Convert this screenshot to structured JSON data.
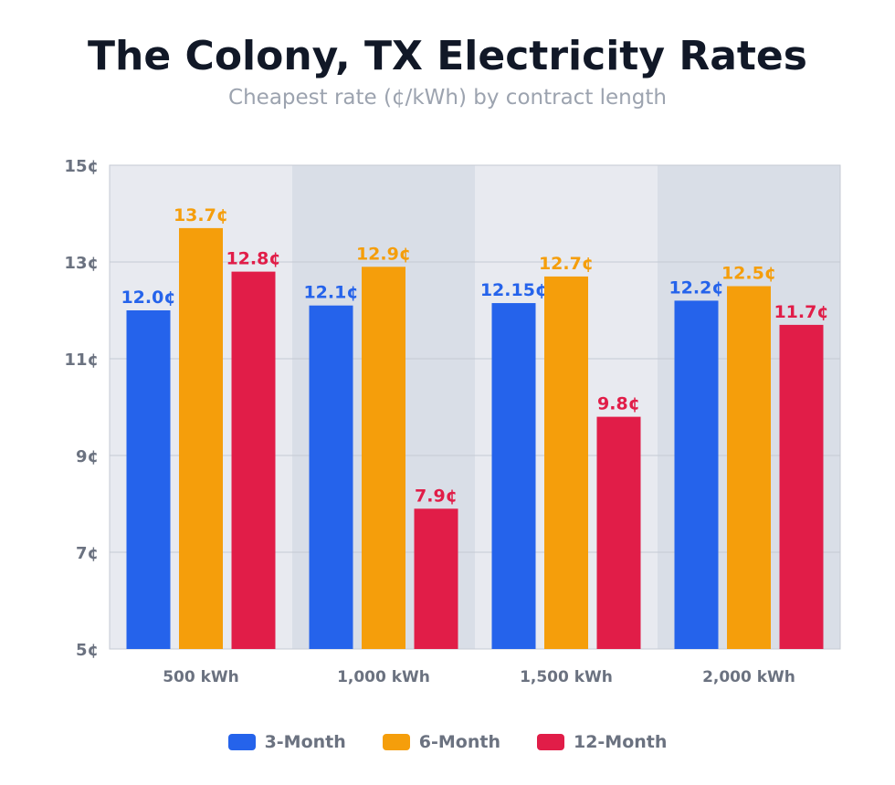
{
  "title": "The Colony, TX Electricity Rates",
  "subtitle": "Cheapest rate (¢/kWh) by contract length",
  "colors": {
    "3-Month": "#2563eb",
    "6-Month": "#f59e0b",
    "12-Month": "#e11d48",
    "band_light": "#e8eaf0",
    "band_dark": "#d9dee7",
    "axis_text": "#6b7280"
  },
  "chart_data": {
    "type": "bar",
    "title": "The Colony, TX Electricity Rates",
    "subtitle": "Cheapest rate (¢/kWh) by contract length",
    "categories": [
      "500 kWh",
      "1,000 kWh",
      "1,500 kWh",
      "2,000 kWh"
    ],
    "series": [
      {
        "name": "3-Month",
        "values": [
          12.0,
          12.1,
          12.15,
          12.2
        ],
        "labels": [
          "12.0¢",
          "12.1¢",
          "12.15¢",
          "12.2¢"
        ]
      },
      {
        "name": "6-Month",
        "values": [
          13.7,
          12.9,
          12.7,
          12.5
        ],
        "labels": [
          "13.7¢",
          "12.9¢",
          "12.7¢",
          "12.5¢"
        ]
      },
      {
        "name": "12-Month",
        "values": [
          12.8,
          7.9,
          9.8,
          11.7
        ],
        "labels": [
          "12.8¢",
          "7.9¢",
          "9.8¢",
          "11.7¢"
        ]
      }
    ],
    "ylim": [
      5,
      15
    ],
    "yticks": [
      "5¢",
      "7¢",
      "9¢",
      "11¢",
      "13¢",
      "15¢"
    ],
    "ytick_values": [
      5,
      7,
      9,
      11,
      13,
      15
    ],
    "grid": true,
    "legend": "bottom"
  }
}
